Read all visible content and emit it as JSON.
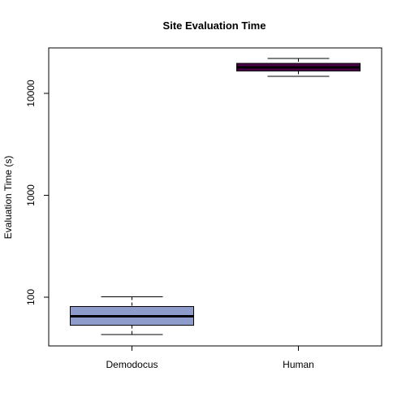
{
  "chart_data": {
    "type": "box",
    "title": "Site Evaluation Time",
    "xlabel": "",
    "ylabel": "Evaluation Time (s)",
    "y_scale": "log",
    "ylim": [
      38,
      27000
    ],
    "y_ticks": [
      100,
      1000,
      10000
    ],
    "y_tick_labels": [
      "100",
      "1000",
      "10000"
    ],
    "categories": [
      "Demodocus",
      "Human"
    ],
    "boxes": [
      {
        "category": "Demodocus",
        "whisker_low": 43,
        "q1": 53,
        "median": 65,
        "q3": 81,
        "whisker_high": 101,
        "color": "#8e9ccc"
      },
      {
        "category": "Human",
        "whisker_low": 14700,
        "q1": 16600,
        "median": 18000,
        "q3": 19700,
        "whisker_high": 22000,
        "color": "#4c0048"
      }
    ],
    "grid": false,
    "legend": "none"
  }
}
